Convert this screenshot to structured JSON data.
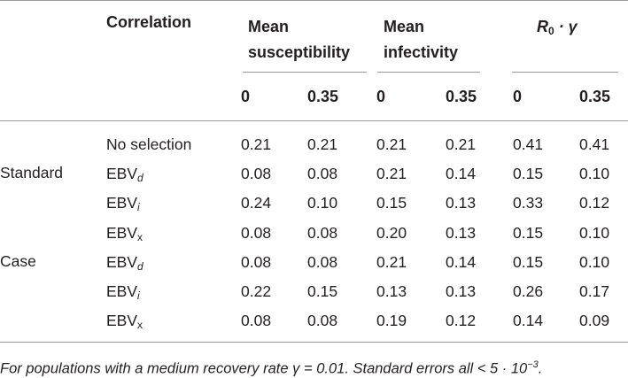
{
  "table": {
    "headers": {
      "correlation": "Correlation",
      "mean_susceptibility_line1": "Mean",
      "mean_susceptibility_line2": "susceptibility",
      "mean_infectivity_line1": "Mean",
      "mean_infectivity_line2": "infectivity",
      "r0_gamma_R": "R",
      "r0_gamma_sub": "0",
      "r0_gamma_rest": " · γ"
    },
    "subheaders": [
      "0",
      "0.35",
      "0",
      "0.35",
      "0",
      "0.35"
    ],
    "group_labels": [
      "Standard",
      "Case"
    ],
    "rows": [
      {
        "base": "No selection",
        "sub": "",
        "sub_italic": false,
        "values": [
          "0.21",
          "0.21",
          "0.21",
          "0.21",
          "0.41",
          "0.41"
        ]
      },
      {
        "base": "EBV",
        "sub": "d",
        "sub_italic": true,
        "values": [
          "0.08",
          "0.08",
          "0.21",
          "0.14",
          "0.15",
          "0.10"
        ]
      },
      {
        "base": "EBV",
        "sub": "i",
        "sub_italic": true,
        "values": [
          "0.24",
          "0.10",
          "0.15",
          "0.13",
          "0.33",
          "0.12"
        ]
      },
      {
        "base": "EBV",
        "sub": "x",
        "sub_italic": false,
        "values": [
          "0.08",
          "0.08",
          "0.20",
          "0.13",
          "0.15",
          "0.10"
        ]
      },
      {
        "base": "EBV",
        "sub": "d",
        "sub_italic": true,
        "values": [
          "0.08",
          "0.08",
          "0.21",
          "0.14",
          "0.15",
          "0.10"
        ]
      },
      {
        "base": "EBV",
        "sub": "i",
        "sub_italic": true,
        "values": [
          "0.22",
          "0.15",
          "0.13",
          "0.13",
          "0.26",
          "0.17"
        ]
      },
      {
        "base": "EBV",
        "sub": "x",
        "sub_italic": false,
        "values": [
          "0.08",
          "0.08",
          "0.19",
          "0.12",
          "0.14",
          "0.09"
        ]
      }
    ],
    "footnote": "For populations with a medium recovery rate γ = 0.01. Standard errors all < 5 · 10",
    "footnote_exp": "−3",
    "footnote_end": "."
  }
}
